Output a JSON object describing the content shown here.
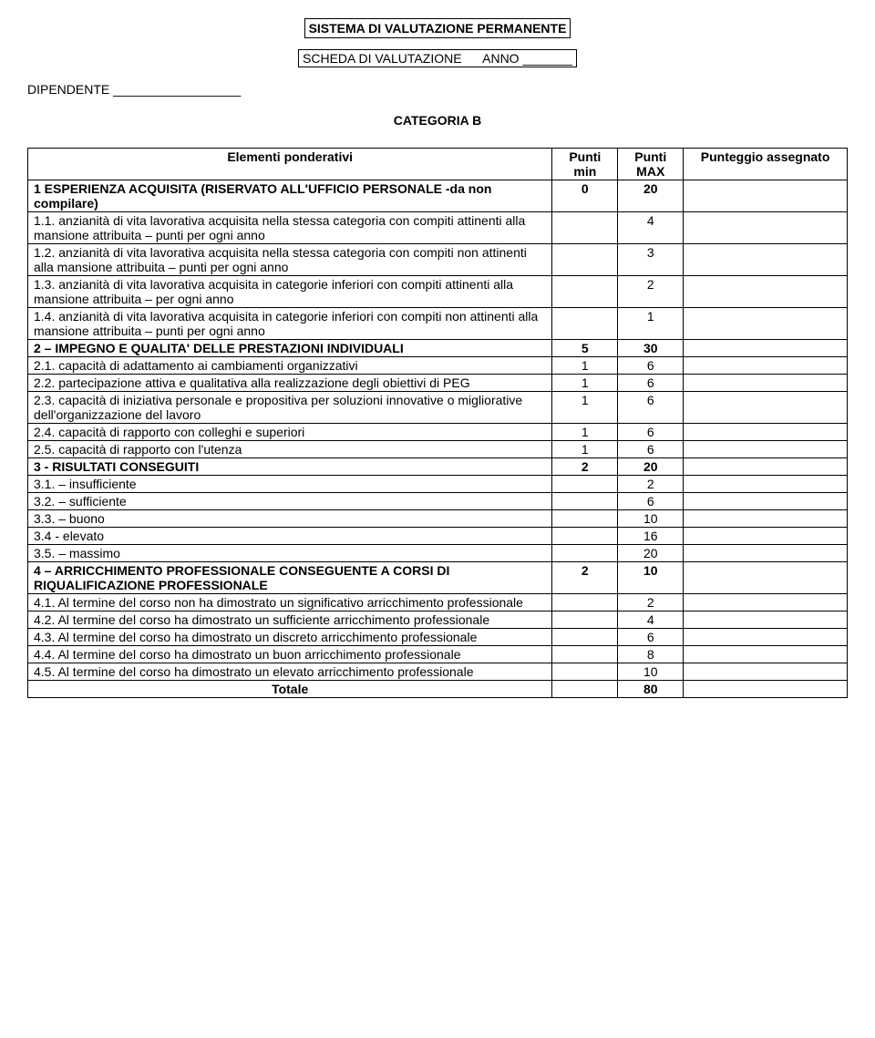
{
  "header": {
    "title": "SISTEMA DI VALUTAZIONE PERMANENTE",
    "sub_left": "SCHEDA DI VALUTAZIONE",
    "sub_right": "ANNO _______",
    "dipendente_label": "DIPENDENTE __________________",
    "categoria_label": "CATEGORIA  B"
  },
  "columns": {
    "c1": "Elementi  ponderativi",
    "c2": "Punti min",
    "c3": "Punti MAX",
    "c4": "Punteggio assegnato"
  },
  "rows": [
    {
      "desc": "1 ESPERIENZA  ACQUISITA\n (RISERVATO ALL'UFFICIO PERSONALE -da non compilare)",
      "min": "0",
      "max": "20",
      "bold": true
    },
    {
      "desc": "1.1. anzianità di vita lavorativa acquisita nella stessa categoria  con compiti attinenti alla mansione attribuita – punti per ogni anno",
      "min": "",
      "max": "4"
    },
    {
      "desc": "1.2. anzianità di vita lavorativa acquisita nella stessa categoria con compiti non attinenti alla mansione attribuita – punti per ogni anno",
      "min": "",
      "max": "3"
    },
    {
      "desc": "1.3. anzianità di vita lavorativa acquisita in categorie inferiori con compiti attinenti alla mansione attribuita – per ogni anno",
      "min": "",
      "max": "2"
    },
    {
      "desc": "1.4. anzianità di vita lavorativa acquisita in categorie inferiori con compiti non attinenti alla mansione attribuita – punti per ogni anno",
      "min": "",
      "max": "1"
    },
    {
      "desc": "2 – IMPEGNO  E  QUALITA'  DELLE  PRESTAZIONI INDIVIDUALI",
      "min": "5",
      "max": "30",
      "bold": true
    },
    {
      "desc": "2.1. capacità di adattamento ai cambiamenti organizzativi",
      "min": "1",
      "max": "6"
    },
    {
      "desc": "2.2. partecipazione attiva e qualitativa alla realizzazione degli obiettivi di PEG",
      "min": "1",
      "max": "6"
    },
    {
      "desc": "2.3. capacità di iniziativa personale e propositiva per  soluzioni innovative o migliorative dell'organizzazione del lavoro",
      "min": "1",
      "max": "6"
    },
    {
      "desc": "2.4. capacità di rapporto con colleghi e superiori",
      "min": "1",
      "max": "6"
    },
    {
      "desc": "2.5. capacità di rapporto con l'utenza",
      "min": "1",
      "max": "6"
    },
    {
      "desc": "3  - RISULTATI  CONSEGUITI",
      "min": "2",
      "max": "20",
      "bold": true
    },
    {
      "desc": "3.1. – insufficiente",
      "min": "",
      "max": "2"
    },
    {
      "desc": "3.2. – sufficiente",
      "min": "",
      "max": "6"
    },
    {
      "desc": "3.3. – buono",
      "min": "",
      "max": "10"
    },
    {
      "desc": "3.4  -  elevato",
      "min": "",
      "max": "16"
    },
    {
      "desc": "3.5. – massimo",
      "min": "",
      "max": "20"
    },
    {
      "desc": "4 – ARRICCHIMENTO  PROFESSIONALE  CONSEGUENTE  A CORSI DI  RIQUALIFICAZIONE  PROFESSIONALE",
      "min": "2",
      "max": "10",
      "bold": true
    },
    {
      "desc": "4.1. Al termine del corso non ha dimostrato un significativo  arricchimento professionale",
      "min": "",
      "max": "2"
    },
    {
      "desc": "4.2. Al termine del corso ha dimostrato un sufficiente arricchimento professionale",
      "min": "",
      "max": "4"
    },
    {
      "desc": "4.3. Al termine del corso ha dimostrato un discreto arricchimento professionale",
      "min": "",
      "max": "6"
    },
    {
      "desc": "4.4. Al termine del corso ha dimostrato un buon arricchimento professionale",
      "min": "",
      "max": "8"
    },
    {
      "desc": "4.5. Al termine del corso ha dimostrato un elevato arricchimento professionale",
      "min": "",
      "max": "10"
    }
  ],
  "total": {
    "label": "Totale",
    "value": "80"
  }
}
